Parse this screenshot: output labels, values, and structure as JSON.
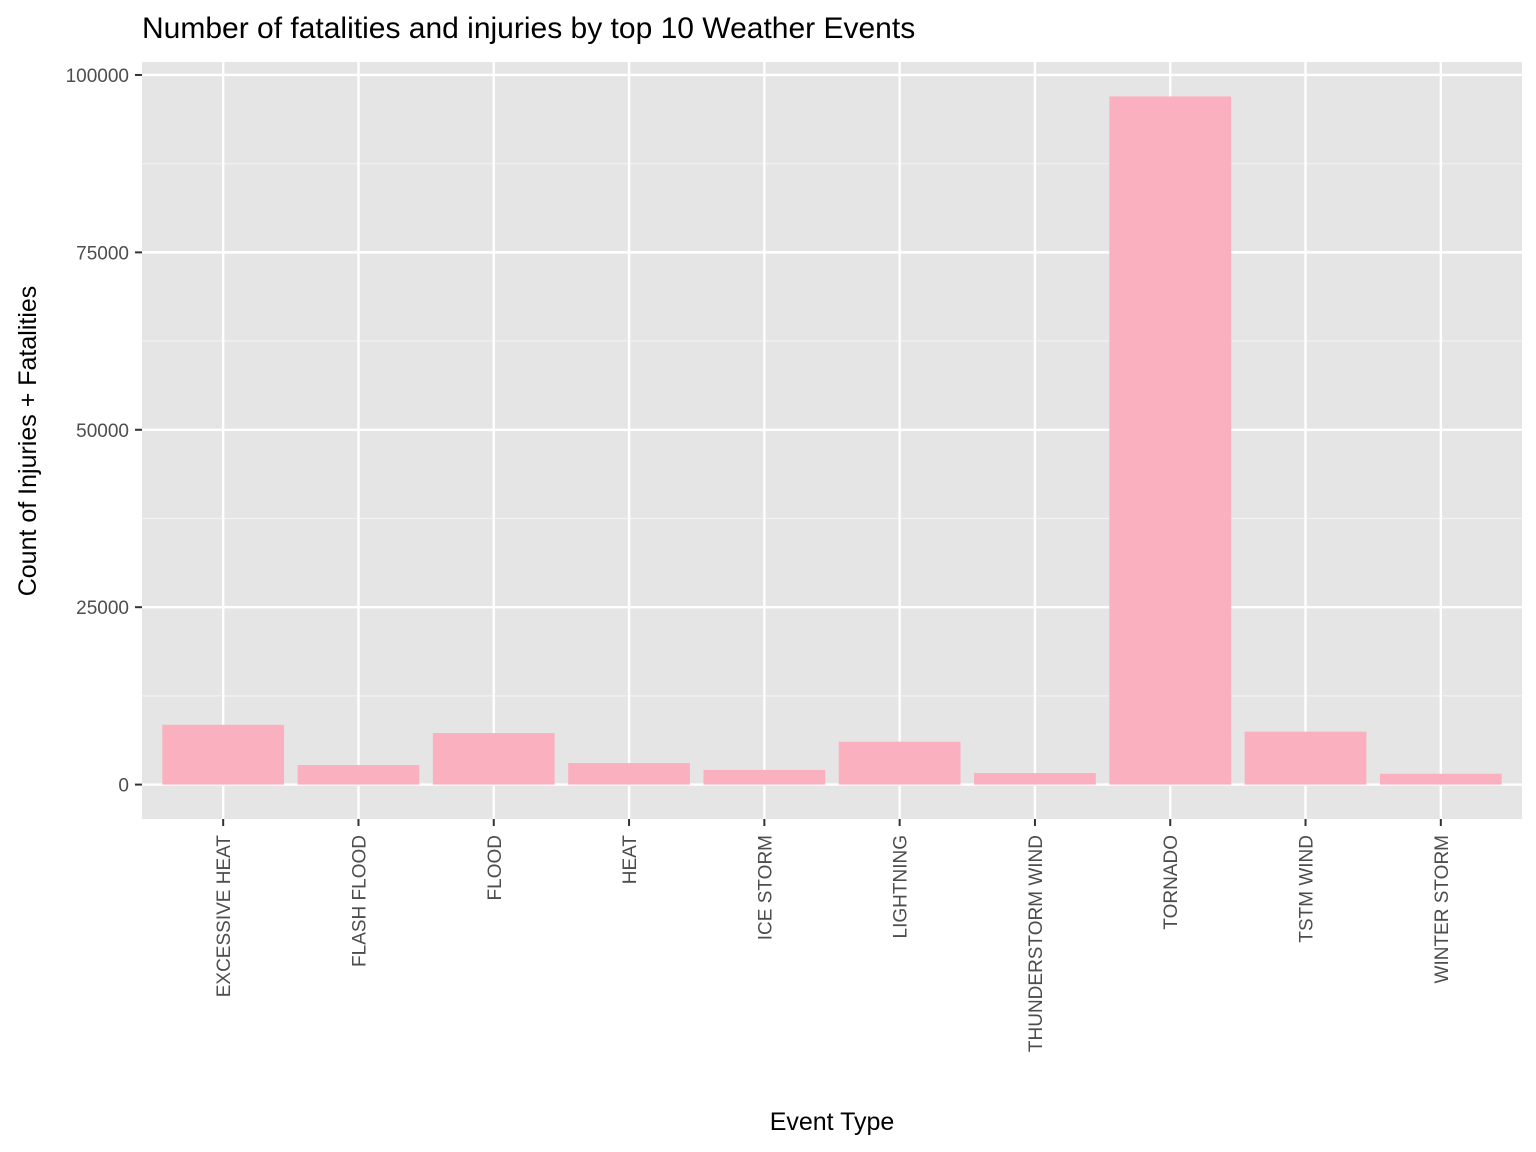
{
  "chart_data": {
    "type": "bar",
    "title": "Number of fatalities and injuries by top 10 Weather Events",
    "xlabel": "Event Type",
    "ylabel": "Count of Injuries + Fatalities",
    "categories": [
      "EXCESSIVE HEAT",
      "FLASH FLOOD",
      "FLOOD",
      "HEAT",
      "ICE STORM",
      "LIGHTNING",
      "THUNDERSTORM WIND",
      "TORNADO",
      "TSTM WIND",
      "WINTER STORM"
    ],
    "values": [
      8428,
      2755,
      7259,
      3037,
      2064,
      6046,
      1621,
      96979,
      7461,
      1527
    ],
    "ylim": [
      -4849,
      101828
    ],
    "yticks": [
      0,
      25000,
      50000,
      75000,
      100000
    ],
    "ytick_labels": [
      "0",
      "25000",
      "50000",
      "75000",
      "100000"
    ],
    "grid": true,
    "legend": "none",
    "colors": {
      "bar_fill": "#FBB0C0",
      "panel_background": "#E5E5E5",
      "grid_major": "#FFFFFF",
      "grid_minor": "#F2F2F2",
      "tick_color": "#333333"
    }
  }
}
